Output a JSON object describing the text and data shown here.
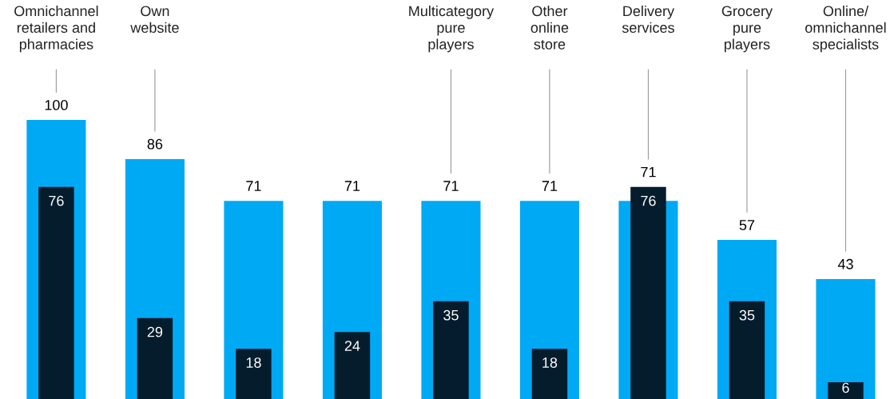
{
  "chart_data": {
    "type": "bar",
    "categories": [
      "Omnichannel\nretailers and\npharmacies",
      "Own\nwebsite",
      null,
      null,
      "Multicategory\npure\nplayers",
      "Other\nonline\nstore",
      "Delivery\nservices",
      "Grocery\npure\nplayers",
      "Online/\nomnichannel\nspecialists"
    ],
    "series": [
      {
        "color": "#00a9f4",
        "values": [
          100,
          86,
          71,
          71,
          71,
          71,
          71,
          57,
          43
        ]
      },
      {
        "color": "#051c2c",
        "values": [
          76,
          29,
          18,
          24,
          35,
          18,
          76,
          35,
          6
        ]
      }
    ],
    "data_labels": true
  }
}
